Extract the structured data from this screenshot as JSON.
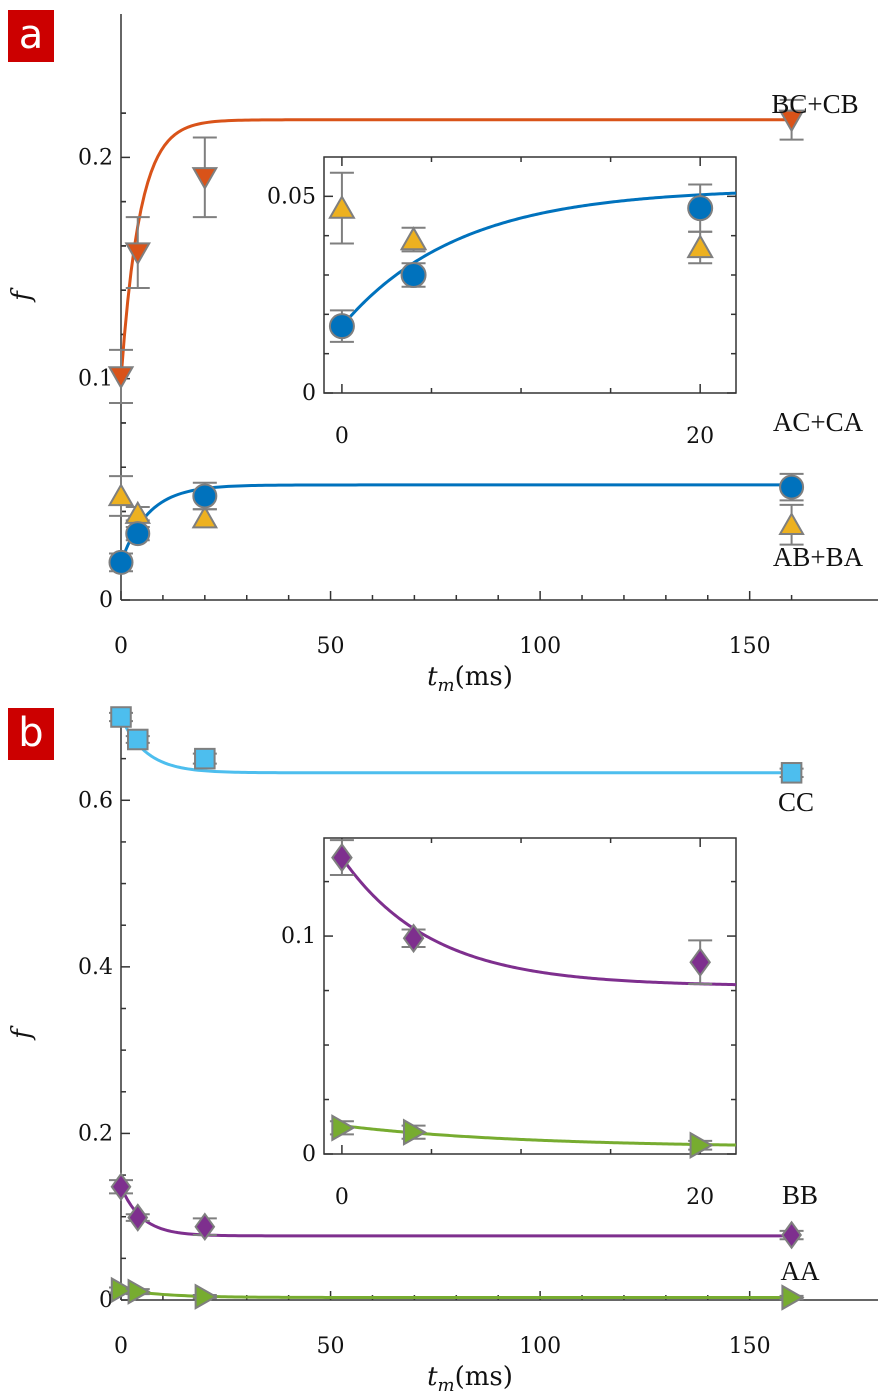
{
  "chart_data": [
    {
      "panel": "a",
      "type": "scatter",
      "xlabel": "t_m (ms)",
      "ylabel": "f",
      "xlim": [
        0,
        170
      ],
      "ylim": [
        0,
        0.23
      ],
      "xticks": [
        0,
        50,
        100,
        150
      ],
      "xtick_labels": [
        "0",
        "50",
        "100",
        "150"
      ],
      "yticks": [
        0,
        0.1,
        0.2
      ],
      "ytick_labels": [
        "0",
        "0.1",
        "0.2"
      ],
      "series": [
        {
          "name": "BC+CB",
          "marker": "triangle-down",
          "color": "#d95319",
          "x": [
            0,
            4,
            20,
            160
          ],
          "y": [
            0.101,
            0.157,
            0.191,
            0.217
          ],
          "err": [
            0.012,
            0.016,
            0.018,
            0.009
          ]
        },
        {
          "name": "AC+CA",
          "marker": "triangle-up",
          "color": "#edb120",
          "x": [
            0,
            4,
            20,
            160
          ],
          "y": [
            0.047,
            0.039,
            0.037,
            0.034
          ],
          "err": [
            0.009,
            0.003,
            0.004,
            0.009
          ]
        },
        {
          "name": "AB+BA",
          "marker": "circle",
          "color": "#0072bd",
          "x": [
            0,
            4,
            20,
            160
          ],
          "y": [
            0.017,
            0.03,
            0.047,
            0.051
          ],
          "err": [
            0.004,
            0.003,
            0.006,
            0.006
          ]
        }
      ],
      "fits": [
        {
          "name": "BC+CB",
          "color": "#d95319",
          "y0": 0.1,
          "yinf": 0.217,
          "tau": 4.5
        },
        {
          "name": "AB+BA",
          "color": "#0072bd",
          "y0": 0.017,
          "yinf": 0.052,
          "tau": 6.5
        }
      ],
      "labels": [
        "BC+CB",
        "AC+CA",
        "AB+BA"
      ],
      "inset": {
        "xlim": [
          -1,
          22
        ],
        "ylim": [
          0,
          0.06
        ],
        "xticks": [
          0,
          20
        ],
        "xtick_labels": [
          "0",
          "20"
        ],
        "yticks": [
          0,
          0.05
        ],
        "ytick_labels": [
          "0",
          "0.05"
        ]
      }
    },
    {
      "panel": "b",
      "type": "scatter",
      "xlabel": "t_m (ms)",
      "ylabel": "f",
      "xlim": [
        0,
        170
      ],
      "ylim": [
        0,
        0.7
      ],
      "xticks": [
        0,
        50,
        100,
        150
      ],
      "xtick_labels": [
        "0",
        "50",
        "100",
        "150"
      ],
      "yticks": [
        0,
        0.2,
        0.4,
        0.6
      ],
      "ytick_labels": [
        "0",
        "0.2",
        "0.4",
        "0.6"
      ],
      "series": [
        {
          "name": "CC",
          "marker": "square",
          "color": "#4dbeee",
          "x": [
            0,
            4,
            20,
            160
          ],
          "y": [
            0.7,
            0.673,
            0.65,
            0.633
          ],
          "err": [
            0.005,
            0.004,
            0.006,
            0.005
          ]
        },
        {
          "name": "BB",
          "marker": "diamond",
          "color": "#7e2f8e",
          "x": [
            0,
            4,
            20,
            160
          ],
          "y": [
            0.136,
            0.099,
            0.088,
            0.078
          ],
          "err": [
            0.008,
            0.004,
            0.01,
            0.005
          ]
        },
        {
          "name": "AA",
          "marker": "triangle-right",
          "color": "#77ac30",
          "x": [
            0,
            4,
            20,
            160
          ],
          "y": [
            0.012,
            0.01,
            0.004,
            0.003
          ],
          "err": [
            0.003,
            0.003,
            0.002,
            0.002
          ]
        }
      ],
      "fits": [
        {
          "name": "CC",
          "color": "#4dbeee",
          "y0": 0.7,
          "yinf": 0.633,
          "tau": 6
        },
        {
          "name": "BB",
          "color": "#7e2f8e",
          "y0": 0.136,
          "yinf": 0.077,
          "tau": 5
        },
        {
          "name": "AA",
          "color": "#77ac30",
          "y0": 0.013,
          "yinf": 0.003,
          "tau": 10
        }
      ],
      "labels": [
        "CC",
        "BB",
        "AA"
      ],
      "inset": {
        "xlim": [
          -1,
          22
        ],
        "ylim": [
          0,
          0.145
        ],
        "xticks": [
          0,
          20
        ],
        "xtick_labels": [
          "0",
          "20"
        ],
        "yticks": [
          0,
          0.1
        ],
        "ytick_labels": [
          "0",
          "0.1"
        ]
      }
    }
  ],
  "panel_badges": {
    "a": "a",
    "b": "b",
    "color": "#cc0000"
  },
  "axis_text": {
    "x_var": "t",
    "x_sub": "m",
    "x_unit": "(ms)",
    "y_var": "f"
  }
}
